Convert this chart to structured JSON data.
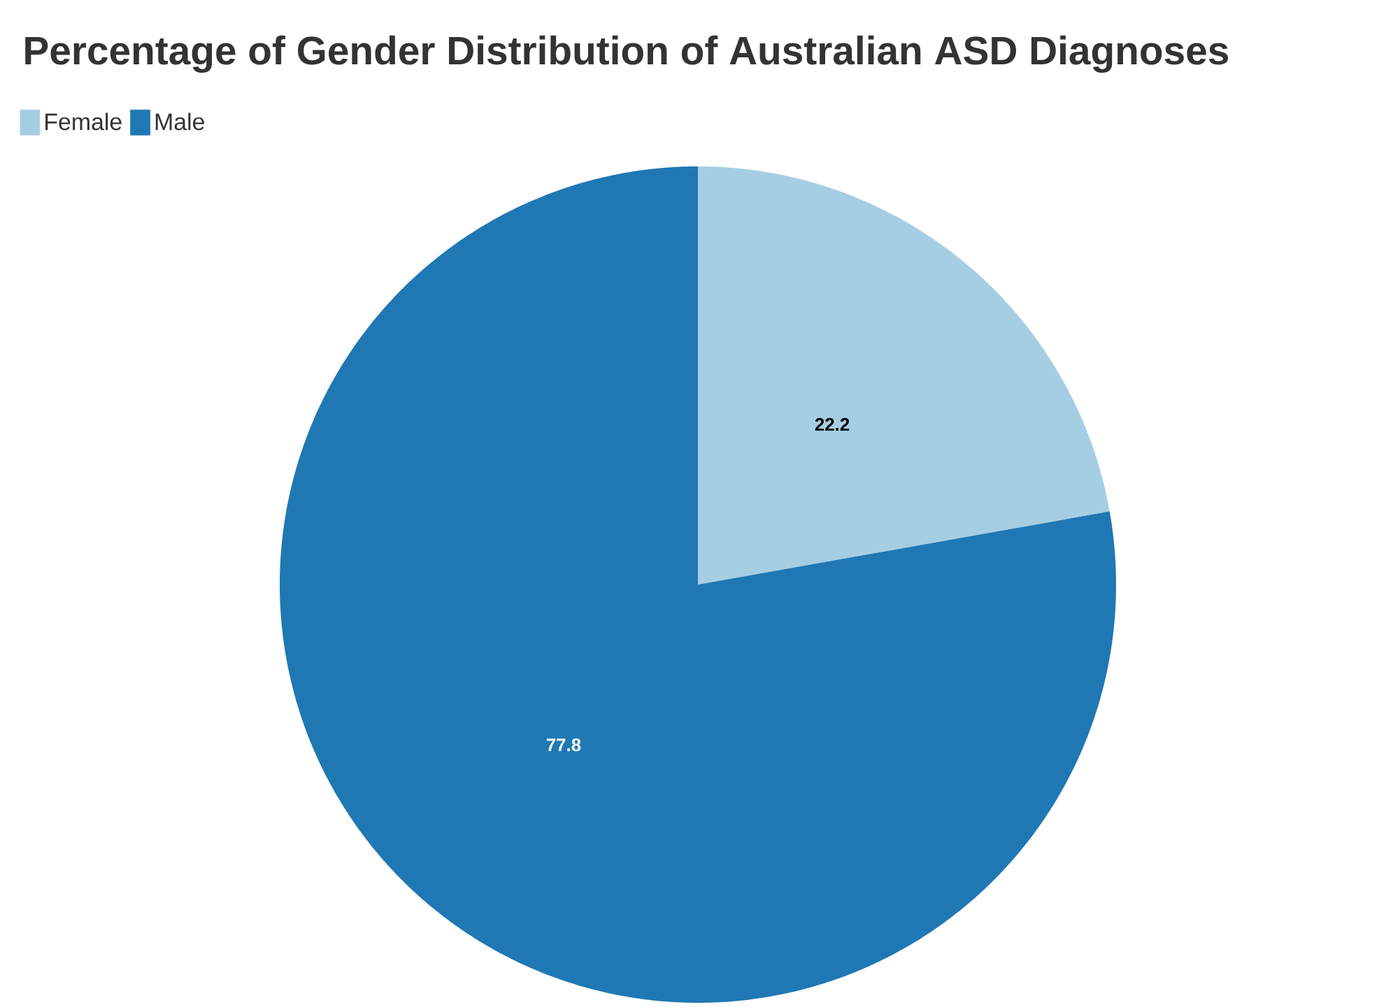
{
  "chart_data": {
    "type": "pie",
    "title": "Percentage of Gender Distribution of Australian ASD Diagnoses",
    "categories": [
      "Female",
      "Male"
    ],
    "values": [
      22.2,
      77.8
    ],
    "colors": [
      "#a6cee3",
      "#1f78b4"
    ],
    "legend": "top left",
    "data_labels": true
  }
}
